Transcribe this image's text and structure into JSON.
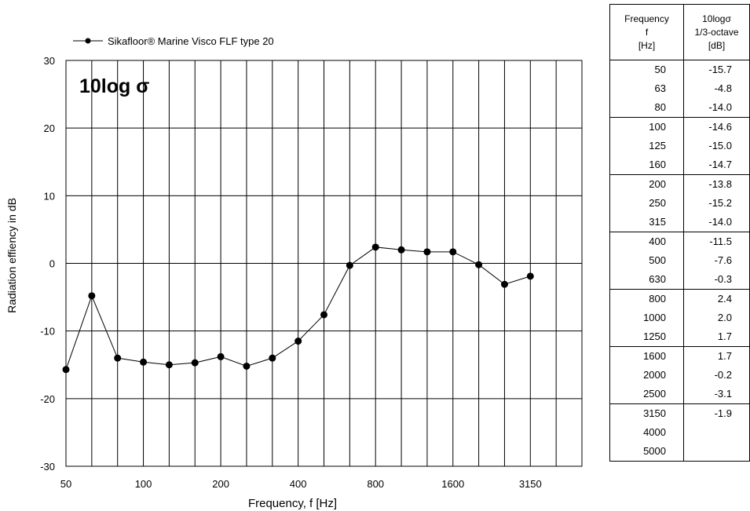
{
  "chart_data": {
    "type": "line",
    "title": "10log σ",
    "xlabel": "Frequency, f [Hz]",
    "ylabel": "Radiation effiency in dB",
    "ylim": [
      -30,
      30
    ],
    "y_ticks": [
      30,
      20,
      10,
      0,
      -10,
      -20,
      -30
    ],
    "x_ticks": [
      "50",
      "100",
      "200",
      "400",
      "800",
      "1600",
      "3150"
    ],
    "x_scale": "log, 1/3-octave bands",
    "x": [
      50,
      63,
      80,
      100,
      125,
      160,
      200,
      250,
      315,
      400,
      500,
      630,
      800,
      1000,
      1250,
      1600,
      2000,
      2500,
      3150
    ],
    "series": [
      {
        "name": "Sikafloor® Marine Visco FLF type 20",
        "values": [
          -15.7,
          -4.8,
          -14.0,
          -14.6,
          -15.0,
          -14.7,
          -13.8,
          -15.2,
          -14.0,
          -11.5,
          -7.6,
          -0.3,
          2.4,
          2.0,
          1.7,
          1.7,
          -0.2,
          -3.1,
          -1.9
        ]
      }
    ],
    "grid": true,
    "legend_position": "top-left"
  },
  "table": {
    "headers": {
      "freq": [
        "Frequency",
        "f",
        "[Hz]"
      ],
      "value": [
        "10logσ",
        "1/3-octave",
        "[dB]"
      ]
    },
    "rows": [
      {
        "f": "50",
        "v": "-15.7"
      },
      {
        "f": "63",
        "v": "-4.8"
      },
      {
        "f": "80",
        "v": "-14.0"
      },
      {
        "f": "100",
        "v": "-14.6"
      },
      {
        "f": "125",
        "v": "-15.0"
      },
      {
        "f": "160",
        "v": "-14.7"
      },
      {
        "f": "200",
        "v": "-13.8"
      },
      {
        "f": "250",
        "v": "-15.2"
      },
      {
        "f": "315",
        "v": "-14.0"
      },
      {
        "f": "400",
        "v": "-11.5"
      },
      {
        "f": "500",
        "v": "-7.6"
      },
      {
        "f": "630",
        "v": "-0.3"
      },
      {
        "f": "800",
        "v": "2.4"
      },
      {
        "f": "1000",
        "v": "2.0"
      },
      {
        "f": "1250",
        "v": "1.7"
      },
      {
        "f": "1600",
        "v": "1.7"
      },
      {
        "f": "2000",
        "v": "-0.2"
      },
      {
        "f": "2500",
        "v": "-3.1"
      },
      {
        "f": "3150",
        "v": "-1.9"
      },
      {
        "f": "4000",
        "v": ""
      },
      {
        "f": "5000",
        "v": ""
      }
    ]
  }
}
